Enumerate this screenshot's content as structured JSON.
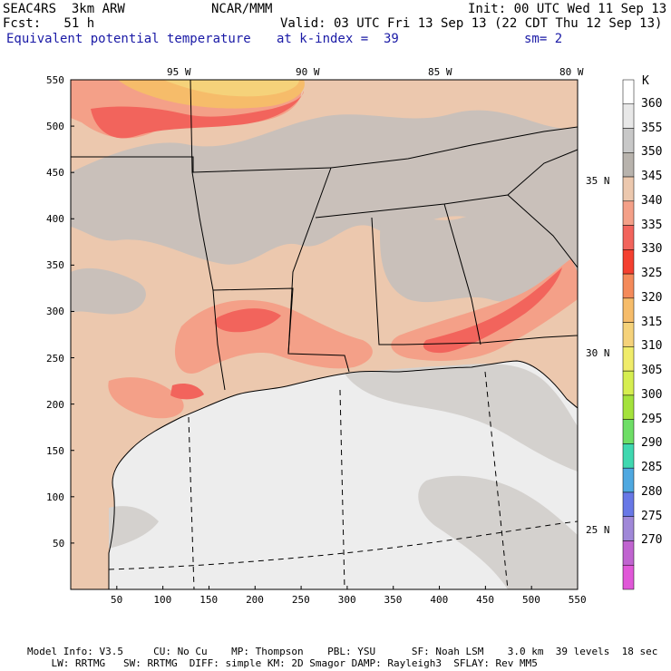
{
  "header": {
    "model": "SEAC4RS  3km ARW",
    "org": "NCAR/MMM",
    "init": "Init: 00 UTC Wed 11 Sep 13",
    "fcst": "Fcst:   51 h",
    "valid": "Valid: 03 UTC Fri 13 Sep 13 (22 CDT Thu 12 Sep 13)",
    "field": "Equivalent potential temperature",
    "level": "at k-index =  39",
    "smooth": "sm= 2"
  },
  "map": {
    "lon_labels": [
      "95 W",
      "90 W",
      "85 W",
      "80 W"
    ],
    "lat_labels": [
      "35 N",
      "30 N",
      "25 N"
    ],
    "x_ticks": [
      "50",
      "100",
      "150",
      "200",
      "250",
      "300",
      "350",
      "400",
      "450",
      "500",
      "550"
    ],
    "y_ticks": [
      "550",
      "500",
      "450",
      "400",
      "350",
      "300",
      "250",
      "200",
      "150",
      "100",
      "50"
    ],
    "colors": {
      "land_base": "#ecc8ae",
      "land_cool": "#c9c0ba",
      "sea": "#ededed",
      "sea_warm": "#d4d1ce",
      "warm": "#f4a088",
      "hot": "#f2645c",
      "hotter": "#f0463c",
      "peak": "#f6bc6a",
      "peak2": "#f5d27a"
    }
  },
  "colorbar": {
    "unit": "K",
    "labels": [
      "360",
      "355",
      "350",
      "345",
      "340",
      "335",
      "330",
      "325",
      "320",
      "315",
      "310",
      "305",
      "300",
      "295",
      "290",
      "285",
      "280",
      "275",
      "270"
    ],
    "colors": [
      "#ffffff",
      "#e8e8e8",
      "#c8c8c8",
      "#b8b3ad",
      "#ecc8ae",
      "#f4a088",
      "#f2645c",
      "#f44030",
      "#f48a5a",
      "#f6bc6a",
      "#f5d27a",
      "#f0ec6a",
      "#d6ee50",
      "#a4e23c",
      "#6ede66",
      "#3fd8b0",
      "#4fa8e0",
      "#6878e6",
      "#a088d8",
      "#c064d0",
      "#e058d8"
    ]
  },
  "footer": {
    "line1": "Model Info: V3.5     CU: No Cu    MP: Thompson    PBL: YSU      SF: Noah LSM    3.0 km  39 levels  18 sec",
    "line2": "    LW: RRTMG   SW: RRTMG  DIFF: simple KM: 2D Smagor DAMP: Rayleigh3  SFLAY: Rev MM5"
  }
}
